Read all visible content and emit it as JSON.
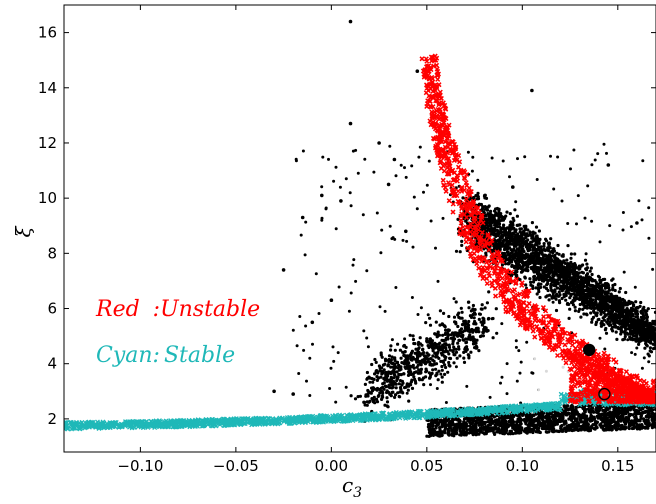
{
  "chart_data": {
    "type": "scatter",
    "title": "",
    "xlabel": "c",
    "xlabel_subscript": "3",
    "ylabel": "ξ",
    "xlim": [
      -0.14,
      0.17
    ],
    "ylim": [
      0.8,
      17.0
    ],
    "x_ticks": [
      -0.1,
      -0.05,
      0.0,
      0.05,
      0.1,
      0.15
    ],
    "x_tick_labels": [
      "−0.10",
      "−0.05",
      "0.00",
      "0.05",
      "0.10",
      "0.15"
    ],
    "y_ticks": [
      2,
      4,
      6,
      8,
      10,
      12,
      14,
      16
    ],
    "y_tick_labels": [
      "2",
      "4",
      "6",
      "8",
      "10",
      "12",
      "14",
      "16"
    ],
    "grid": false,
    "legend": [
      {
        "label": "Red",
        "separator": ":",
        "value": "Unstable",
        "color": "#ff0000"
      },
      {
        "label": "Cyan",
        "separator": ":",
        "value": "Stable",
        "color": "#1fb8b8"
      }
    ],
    "series": [
      {
        "name": "Unstable",
        "color": "#ff0000",
        "marker": "x",
        "description_points": [
          [
            0.051,
            15.1
          ],
          [
            0.054,
            13.6
          ],
          [
            0.058,
            12.3
          ],
          [
            0.063,
            11.1
          ],
          [
            0.07,
            9.6
          ],
          [
            0.078,
            8.2
          ],
          [
            0.088,
            7.1
          ],
          [
            0.1,
            6.1
          ],
          [
            0.112,
            5.3
          ],
          [
            0.125,
            4.6
          ],
          [
            0.14,
            3.9
          ],
          [
            0.155,
            3.3
          ],
          [
            0.17,
            2.9
          ],
          [
            0.165,
            2.6
          ],
          [
            0.15,
            2.9
          ],
          [
            0.135,
            3.2
          ],
          [
            0.125,
            3.6
          ]
        ]
      },
      {
        "name": "Stable",
        "color": "#1fb8b8",
        "marker": "x",
        "description_points": [
          [
            -0.14,
            1.75
          ],
          [
            -0.12,
            1.78
          ],
          [
            -0.1,
            1.82
          ],
          [
            -0.08,
            1.86
          ],
          [
            -0.06,
            1.9
          ],
          [
            -0.04,
            1.95
          ],
          [
            -0.02,
            2.0
          ],
          [
            0.0,
            2.05
          ],
          [
            0.02,
            2.1
          ],
          [
            0.04,
            2.18
          ],
          [
            0.06,
            2.28
          ],
          [
            0.08,
            2.4
          ],
          [
            0.1,
            2.55
          ],
          [
            0.12,
            2.75
          ],
          [
            0.13,
            2.9
          ],
          [
            0.15,
            2.75
          ],
          [
            0.17,
            2.65
          ]
        ]
      },
      {
        "name": "",
        "color": "#000000",
        "marker": "o",
        "description": "dense black scatter cloud: upper arm from (0.07, 9.5) to (0.17, 5.2), lower band near ξ≈1.3–2.5 for c3 0.05–0.17, sparse outliers",
        "outliers": [
          [
            0.01,
            16.4
          ],
          [
            0.045,
            14.6
          ],
          [
            0.105,
            13.9
          ],
          [
            0.01,
            12.7
          ],
          [
            0.025,
            12.0
          ],
          [
            -0.015,
            9.3
          ],
          [
            -0.025,
            7.4
          ],
          [
            0.0,
            6.3
          ],
          [
            -0.01,
            5.5
          ],
          [
            -0.005,
            10.1
          ],
          [
            0.03,
            10.5
          ],
          [
            0.033,
            11.4
          ],
          [
            0.039,
            8.8
          ],
          [
            -0.03,
            3.0
          ],
          [
            -0.02,
            2.9
          ],
          [
            0.095,
            10.4
          ],
          [
            0.145,
            11.2
          ],
          [
            0.16,
            9.1
          ],
          [
            0.005,
            9.9
          ]
        ]
      }
    ],
    "highlight_points": [
      {
        "c3": 0.135,
        "xi": 4.5,
        "style": "filled"
      },
      {
        "c3": 0.143,
        "xi": 2.9,
        "style": "open"
      }
    ]
  }
}
